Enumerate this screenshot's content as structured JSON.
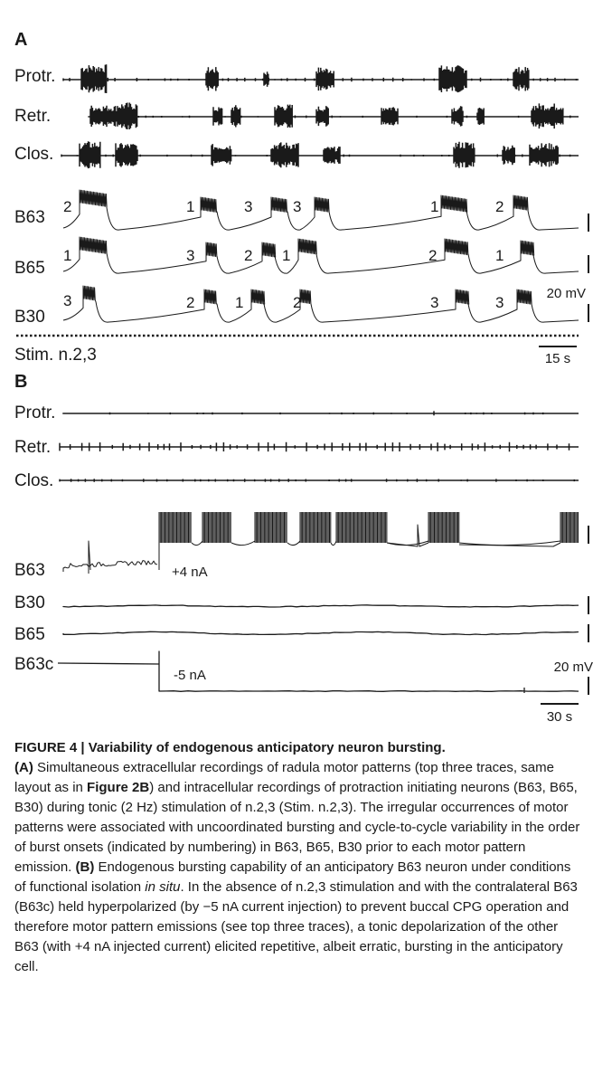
{
  "figure": {
    "panel_a": {
      "letter": "A",
      "extracellular": [
        "Protr.",
        "Retr.",
        "Clos."
      ],
      "intracellular": [
        {
          "name": "B63",
          "order": [
            "2",
            "1",
            "3",
            "3",
            "1",
            "2"
          ]
        },
        {
          "name": "B65",
          "order": [
            "1",
            "3",
            "2",
            "1",
            "2",
            "1"
          ]
        },
        {
          "name": "B30",
          "order": [
            "3",
            "2",
            "1",
            "2",
            "3",
            "3"
          ]
        }
      ],
      "voltage_scale": "20 mV",
      "stim_label": "Stim. n.2,3",
      "time_scale": "15 s"
    },
    "panel_b": {
      "letter": "B",
      "extracellular": [
        "Protr.",
        "Retr.",
        "Clos."
      ],
      "intracellular": [
        "B63",
        "B30",
        "B65",
        "B63c"
      ],
      "current_b63": "+4 nA",
      "current_b63c": "-5 nA",
      "voltage_scale": "20 mV",
      "time_scale": "30 s"
    }
  },
  "caption": {
    "label": "FIGURE 4 | ",
    "title": "Variability of endogenous anticipatory neuron bursting.",
    "a_tag": "(A)",
    "a_text_1": " Simultaneous extracellular recordings of radula motor patterns (top three traces, same layout as in ",
    "a_ref": "Figure 2B",
    "a_text_2": ") and intracellular recordings of protraction initiating neurons (B63, B65, B30) during tonic (2 Hz) stimulation of n.2,3 (Stim. n.2,3). The irregular occurrences of motor patterns were associated with uncoordinated bursting and cycle-to-cycle variability in the order of burst onsets (indicated by numbering) in B63, B65, B30 prior to each motor pattern emission. ",
    "b_tag": "(B)",
    "b_text_1": " Endogenous bursting capability of an anticipatory B63 neuron under conditions of functional isolation ",
    "b_italic": "in situ",
    "b_text_2": ". In the absence of n.2,3 stimulation and with the contralateral B63 (B63c) held hyperpolarized (by −5 nA current injection) to prevent buccal CPG operation and therefore motor pattern emissions (see top three traces), a tonic depolarization of the other B63 (with +4 nA injected current) elicited repetitive, albeit erratic, bursting in the anticipatory cell."
  }
}
